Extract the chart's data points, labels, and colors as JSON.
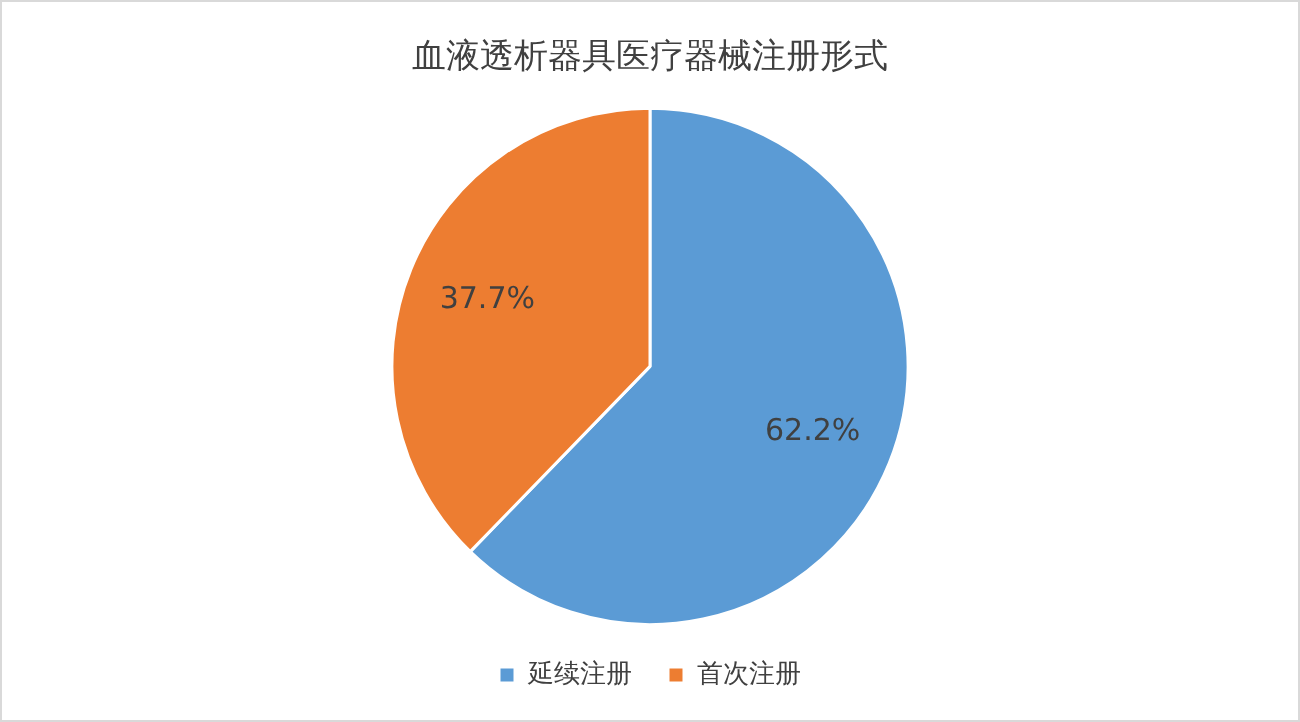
{
  "chart_data": {
    "type": "pie",
    "title": "血液透析器具医疗器械注册形式",
    "categories": [
      "延续注册",
      "首次注册"
    ],
    "values": [
      62.2,
      37.7
    ],
    "value_labels": [
      "62.2%",
      "37.7%"
    ],
    "colors": [
      "#5b9bd5",
      "#ed7d31"
    ],
    "legend": "bottom"
  }
}
